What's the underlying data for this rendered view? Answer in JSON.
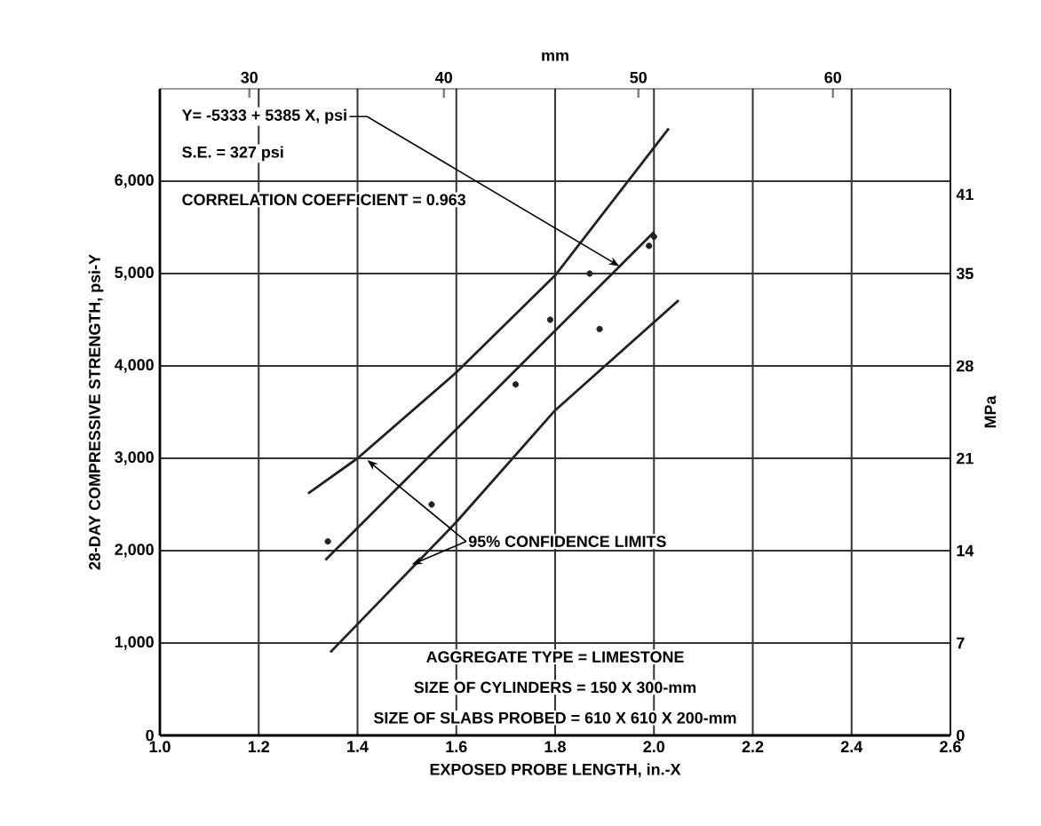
{
  "chart_data": {
    "type": "scatter",
    "xlabel": "EXPOSED PROBE LENGTH, in.-X",
    "ylabel": "28-DAY COMPRESSIVE STRENGTH, psi-Y",
    "y2label": "MPa",
    "x2label": "mm",
    "xlim": [
      1.0,
      2.6
    ],
    "ylim": [
      0,
      7000
    ],
    "y2lim": [
      0,
      49
    ],
    "x2lim": [
      25.4,
      66.04
    ],
    "xticks": [
      {
        "value": 1.0,
        "label": "1.0"
      },
      {
        "value": 1.2,
        "label": "1.2"
      },
      {
        "value": 1.4,
        "label": "1.4"
      },
      {
        "value": 1.6,
        "label": "1.6"
      },
      {
        "value": 1.8,
        "label": "1.8"
      },
      {
        "value": 2.0,
        "label": "2.0"
      },
      {
        "value": 2.2,
        "label": "2.2"
      },
      {
        "value": 2.4,
        "label": "2.4"
      },
      {
        "value": 2.6,
        "label": "2.6"
      }
    ],
    "yticks": [
      {
        "value": 0,
        "label": "0"
      },
      {
        "value": 1000,
        "label": "1,000"
      },
      {
        "value": 2000,
        "label": "2,000"
      },
      {
        "value": 3000,
        "label": "3,000"
      },
      {
        "value": 4000,
        "label": "4,000"
      },
      {
        "value": 5000,
        "label": "5,000"
      },
      {
        "value": 6000,
        "label": "6,000"
      }
    ],
    "y2ticks": [
      0,
      7,
      14,
      21,
      28,
      35,
      41
    ],
    "x2ticks": [
      30,
      40,
      50,
      60
    ],
    "grid": true,
    "series": [
      {
        "marker": "circle",
        "color": "#222222",
        "x": [
          1.34,
          1.55,
          1.72,
          1.79,
          1.87,
          1.89,
          1.99,
          2.0
        ],
        "values": [
          2100,
          2500,
          3800,
          4500,
          5000,
          4400,
          5300,
          5400
        ]
      },
      {
        "type": "line",
        "marker": "none",
        "color": "#222222",
        "x": [
          1.335,
          2.0
        ],
        "values": [
          1900,
          5450
        ]
      },
      {
        "type": "line",
        "marker": "none",
        "color": "#222222",
        "x": [
          1.3,
          1.4,
          1.6,
          1.8,
          2.03
        ],
        "values": [
          2620,
          3000,
          3930,
          4980,
          6570
        ]
      },
      {
        "type": "line",
        "marker": "none",
        "color": "#222222",
        "x": [
          1.345,
          1.6,
          1.8,
          2.05
        ],
        "values": [
          900,
          2310,
          3520,
          4710
        ]
      }
    ],
    "annotations": [
      {
        "text": "Y= -5333 + 5385 X, psi",
        "x": 1.93,
        "y": 5080
      },
      "S.E. = 327 psi",
      "CORRELATION COEFFICIENT = 0.963",
      {
        "text": "95% CONFIDENCE LIMITS",
        "x": 1.51,
        "y": 1850
      },
      "AGGREGATE TYPE = LIMESTONE",
      "SIZE OF CYLINDERS = 150 X 300-mm",
      "SIZE OF SLABS PROBED = 610 X 610 X 200-mm"
    ]
  }
}
